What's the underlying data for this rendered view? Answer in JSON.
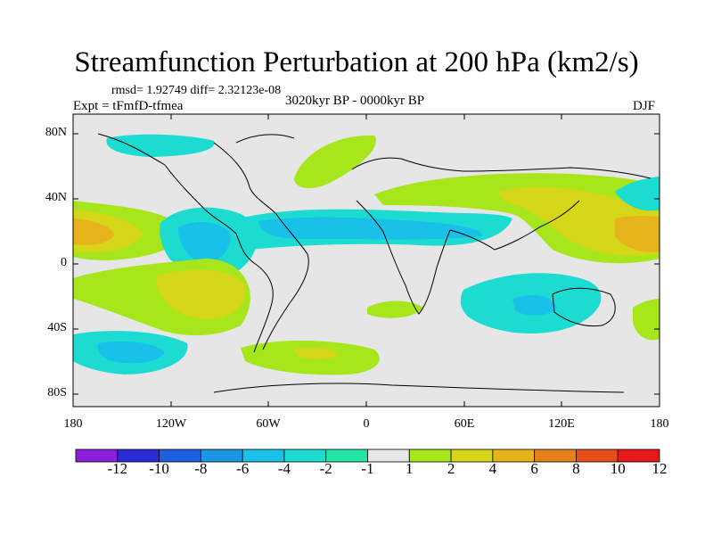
{
  "title": "Streamfunction Perturbation at 200 hPa (km2/s)",
  "stats": "rmsd= 1.92749 diff= 2.32123e-08",
  "experiment": "Expt = tFmfD-tfmea",
  "period": "3020kyr BP - 0000kyr BP",
  "season": "DJF",
  "lat_labels": [
    "80N",
    "40N",
    "0",
    "40S",
    "80S"
  ],
  "lon_labels": [
    "180",
    "120W",
    "60W",
    "0",
    "60E",
    "120E",
    "180"
  ],
  "colorbar_labels": [
    "-12",
    "-10",
    "-8",
    "-6",
    "-4",
    "-2",
    "-1",
    "1",
    "2",
    "4",
    "6",
    "8",
    "10",
    "12"
  ],
  "colorbar_colors": [
    "#8c1fd9",
    "#2b2bd6",
    "#1e5fe0",
    "#1a96e3",
    "#19c0e8",
    "#1cdbd0",
    "#23e6a6",
    "#e6e6e6",
    "#a6e61a",
    "#d6d619",
    "#e6b31a",
    "#e6801a",
    "#e64d1a",
    "#e61a1a"
  ],
  "background_color": "#e6e6e6"
}
